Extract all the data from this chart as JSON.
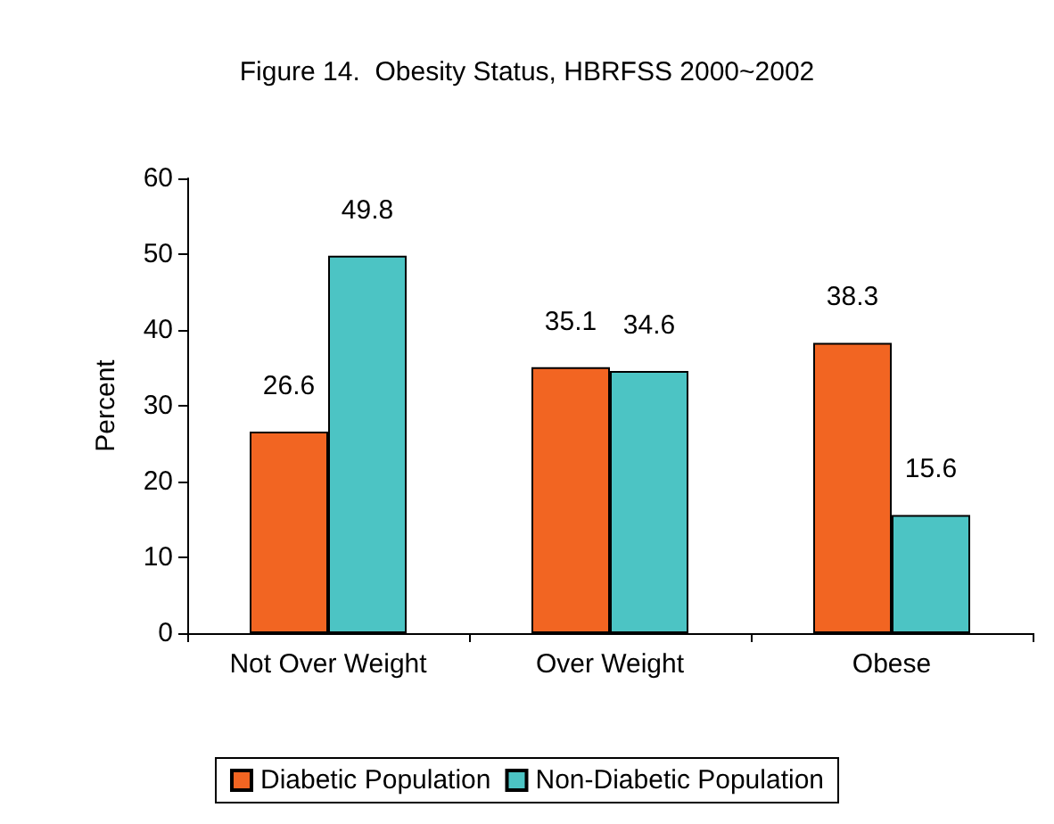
{
  "chart_data": {
    "type": "bar",
    "title": "Figure 14.  Obesity Status, HBRFSS 2000~2002",
    "ylabel": "Percent",
    "categories": [
      "Not Over Weight",
      "Over Weight",
      "Obese"
    ],
    "series": [
      {
        "name": "Diabetic Population",
        "color": "#f26522",
        "values": [
          26.6,
          35.1,
          38.3
        ]
      },
      {
        "name": "Non-Diabetic Population",
        "color": "#4cc4c4",
        "values": [
          49.8,
          34.6,
          15.6
        ]
      }
    ],
    "ylim": [
      0,
      60
    ],
    "yticks": [
      0,
      10,
      20,
      30,
      40,
      50,
      60
    ],
    "data_labels": true,
    "grid": false,
    "legend": "bottom"
  }
}
